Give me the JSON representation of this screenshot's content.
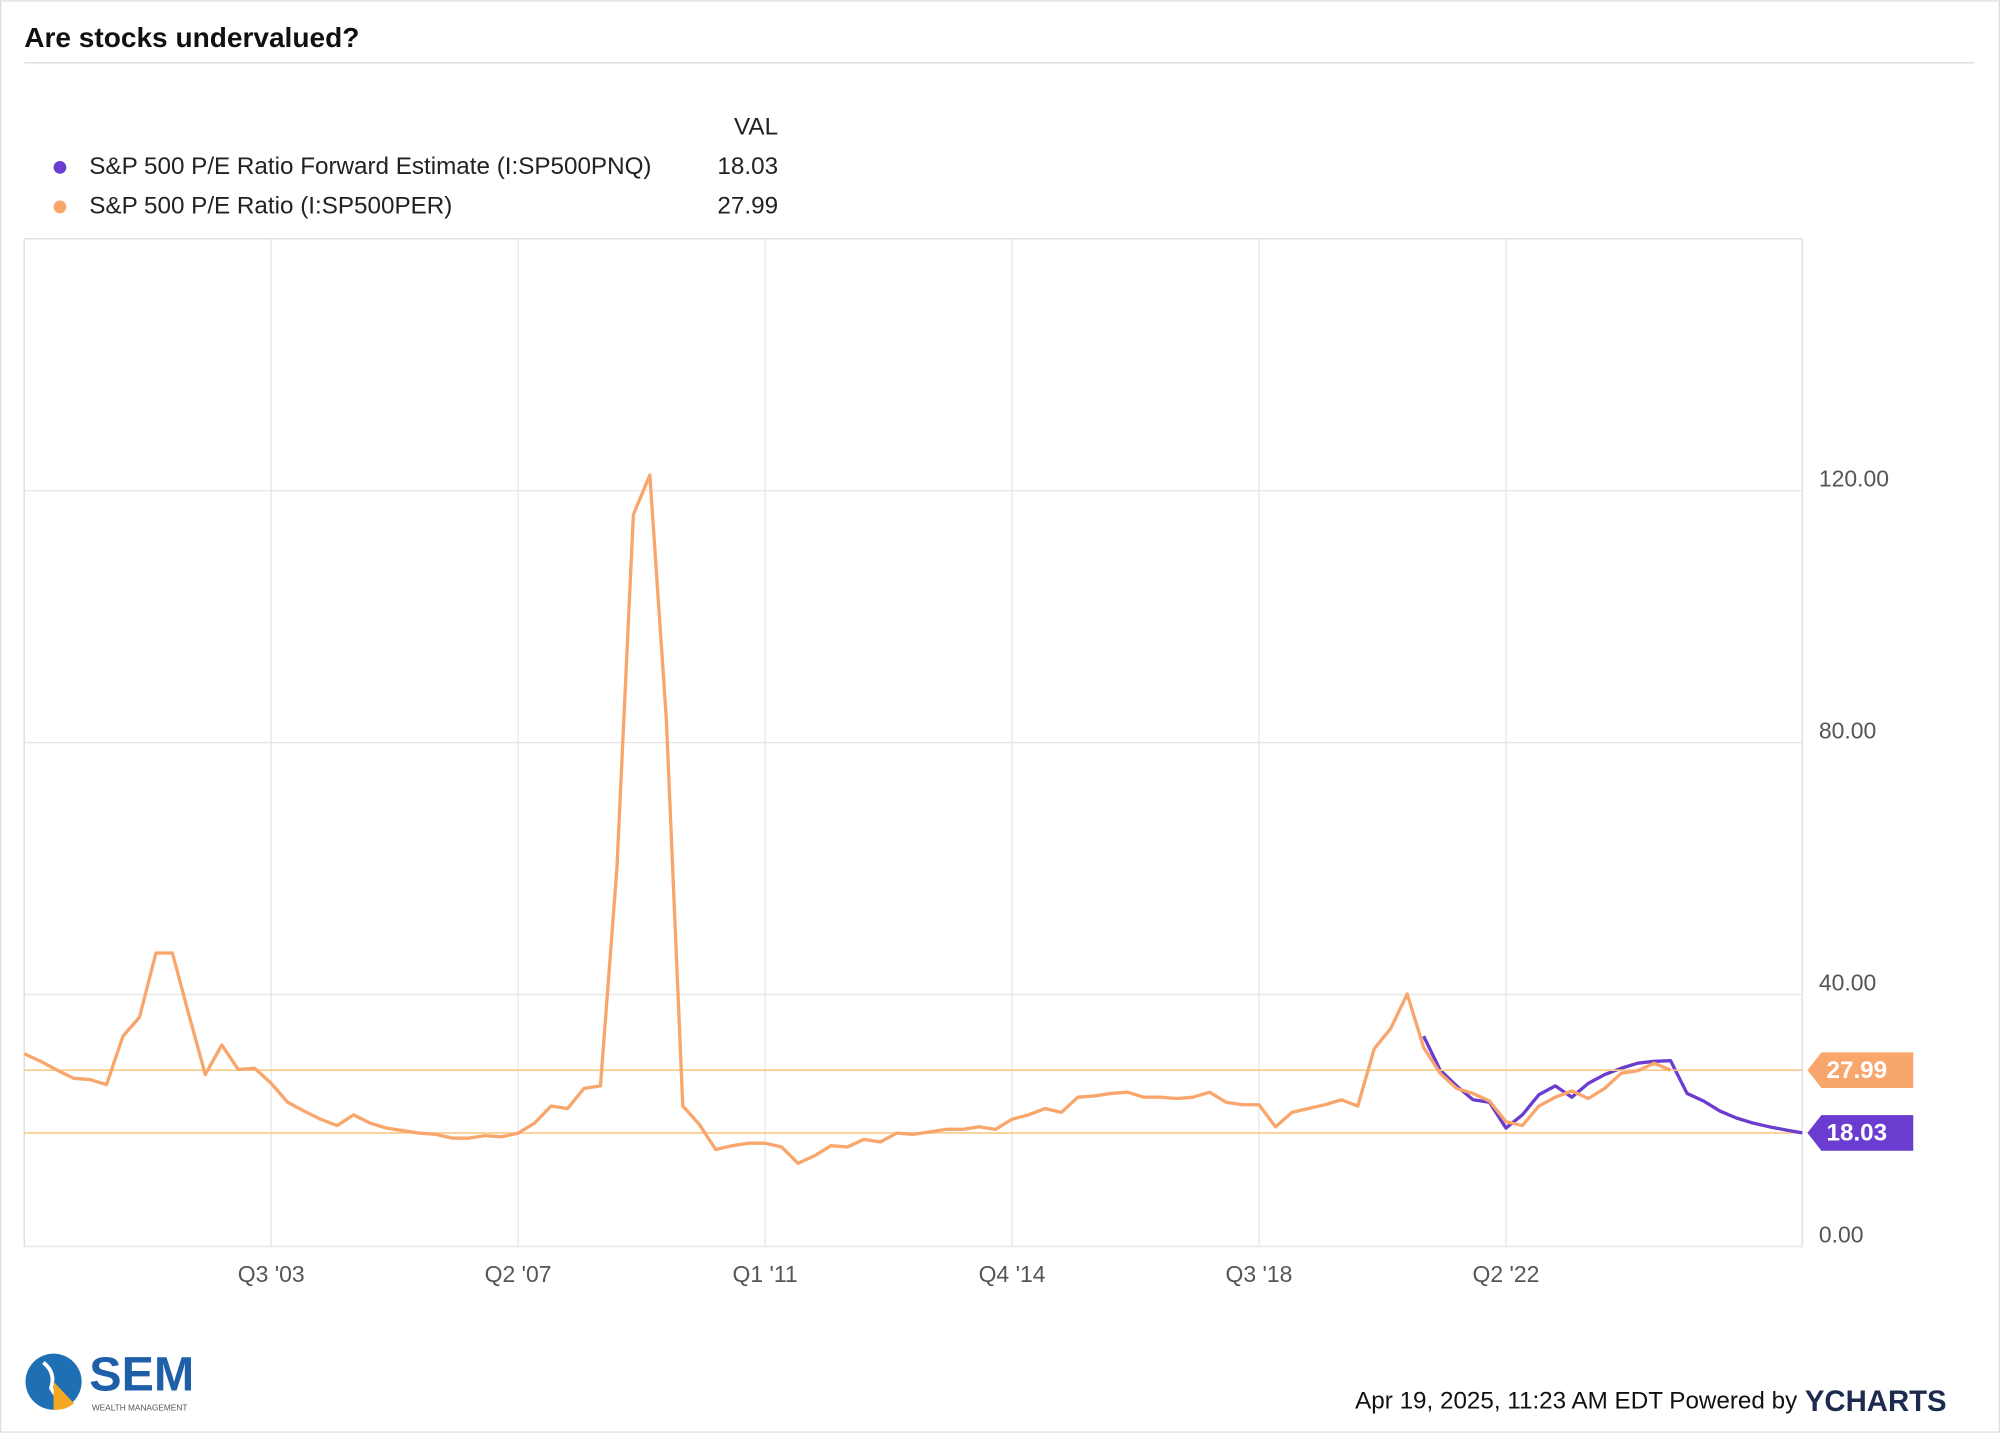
{
  "chart_data": {
    "type": "line",
    "title": "Are stocks undervalued?",
    "legend_header": "VAL",
    "x": [
      1999.75,
      2000,
      2000.25,
      2000.5,
      2000.75,
      2001,
      2001.25,
      2001.5,
      2001.75,
      2002,
      2002.25,
      2002.5,
      2002.75,
      2003,
      2003.25,
      2003.5,
      2003.75,
      2004,
      2004.25,
      2004.5,
      2004.75,
      2005,
      2005.25,
      2005.5,
      2005.75,
      2006,
      2006.25,
      2006.5,
      2006.75,
      2007,
      2007.25,
      2007.5,
      2007.75,
      2008,
      2008.25,
      2008.5,
      2008.75,
      2009,
      2009.25,
      2009.5,
      2009.75,
      2010,
      2010.25,
      2010.5,
      2010.75,
      2011,
      2011.25,
      2011.5,
      2011.75,
      2012,
      2012.25,
      2012.5,
      2012.75,
      2013,
      2013.25,
      2013.5,
      2013.75,
      2014,
      2014.25,
      2014.5,
      2014.75,
      2015,
      2015.25,
      2015.5,
      2015.75,
      2016,
      2016.25,
      2016.5,
      2016.75,
      2017,
      2017.25,
      2017.5,
      2017.75,
      2018,
      2018.25,
      2018.5,
      2018.75,
      2019,
      2019.25,
      2019.5,
      2019.75,
      2020,
      2020.25,
      2020.5,
      2020.75,
      2021,
      2021.25,
      2021.5,
      2021.75,
      2022,
      2022.25,
      2022.5,
      2022.75,
      2023,
      2023.25,
      2023.5,
      2023.75,
      2024,
      2024.25,
      2024.5,
      2024.75,
      2025,
      2025.25,
      2025.5,
      2025.75,
      2026,
      2026.25,
      2026.5,
      2026.75
    ],
    "series": [
      {
        "name": "S&P 500 P/E Ratio Forward Estimate (I:SP500PNQ)",
        "color": "#6a3ccf",
        "values": [
          null,
          null,
          null,
          null,
          null,
          null,
          null,
          null,
          null,
          null,
          null,
          null,
          null,
          null,
          null,
          null,
          null,
          null,
          null,
          null,
          null,
          null,
          null,
          null,
          null,
          null,
          null,
          null,
          null,
          null,
          null,
          null,
          null,
          null,
          null,
          null,
          null,
          null,
          null,
          null,
          null,
          null,
          null,
          null,
          null,
          null,
          null,
          null,
          null,
          null,
          null,
          null,
          null,
          null,
          null,
          null,
          null,
          null,
          null,
          null,
          null,
          null,
          null,
          null,
          null,
          null,
          null,
          null,
          null,
          null,
          null,
          null,
          null,
          null,
          null,
          null,
          null,
          null,
          null,
          null,
          null,
          null,
          null,
          null,
          null,
          33.4,
          28.0,
          25.5,
          23.3,
          22.9,
          18.8,
          20.9,
          24.1,
          25.5,
          23.7,
          25.9,
          27.3,
          28.3,
          29.1,
          29.4,
          29.5,
          24.3,
          23.1,
          21.5,
          20.4,
          19.6,
          19.0,
          18.5,
          18.03
        ]
      },
      {
        "name": "S&P 500 P/E Ratio (I:SP500PER)",
        "color": "#f9a66c",
        "values": [
          30.6,
          29.4,
          28.0,
          26.7,
          26.5,
          25.7,
          33.4,
          36.4,
          46.6,
          46.6,
          36.8,
          27.3,
          32.0,
          28.1,
          28.3,
          25.9,
          22.9,
          21.5,
          20.2,
          19.2,
          20.9,
          19.6,
          18.8,
          18.4,
          18.0,
          17.8,
          17.2,
          17.2,
          17.6,
          17.4,
          18.0,
          19.6,
          22.3,
          21.9,
          25.1,
          25.5,
          60.1,
          116.2,
          122.5,
          83.8,
          22.3,
          19.4,
          15.4,
          16.0,
          16.4,
          16.4,
          15.8,
          13.2,
          14.4,
          16.0,
          15.8,
          17.0,
          16.6,
          18.0,
          17.8,
          18.2,
          18.6,
          18.6,
          19.0,
          18.6,
          20.2,
          20.9,
          21.9,
          21.3,
          23.7,
          23.9,
          24.3,
          24.5,
          23.7,
          23.7,
          23.5,
          23.7,
          24.5,
          22.9,
          22.5,
          22.5,
          19.0,
          21.3,
          21.9,
          22.5,
          23.3,
          22.3,
          31.4,
          34.6,
          40.1,
          31.6,
          27.5,
          25.1,
          24.3,
          23.1,
          19.8,
          19.2,
          22.3,
          23.7,
          24.7,
          23.5,
          25.1,
          27.5,
          27.9,
          29.1,
          27.99,
          null,
          null,
          null,
          null,
          null,
          null,
          null,
          null
        ]
      }
    ],
    "xlim": [
      1999.75,
      2026.75
    ],
    "xticks": [
      {
        "value": 2003.5,
        "label": "Q3 '03"
      },
      {
        "value": 2007.25,
        "label": "Q2 '07"
      },
      {
        "value": 2011,
        "label": "Q1 '11"
      },
      {
        "value": 2014.75,
        "label": "Q4 '14"
      },
      {
        "value": 2018.5,
        "label": "Q3 '18"
      },
      {
        "value": 2022.25,
        "label": "Q2 '22"
      }
    ],
    "ylim": [
      0,
      160
    ],
    "yticks": [
      {
        "value": 0,
        "label": "0.00"
      },
      {
        "value": 40,
        "label": "40.00"
      },
      {
        "value": 80,
        "label": "80.00"
      },
      {
        "value": 120,
        "label": "120.00"
      }
    ],
    "grid": true,
    "footer": "Apr 19, 2025, 11:23 AM EDT Powered by",
    "brand": "YCHARTS",
    "logo": {
      "name": "SEM",
      "subtitle": "WEALTH MANAGEMENT"
    }
  }
}
